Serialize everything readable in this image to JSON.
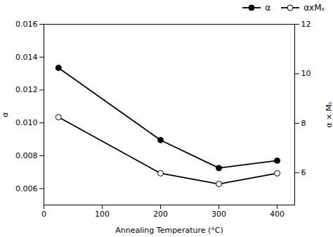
{
  "chart_data": {
    "type": "line",
    "x": [
      25,
      200,
      300,
      400
    ],
    "xlabel": "Annealing Temperature (°C)",
    "ylabel": "α",
    "y2label": "α × Mₛ",
    "series": [
      {
        "name": "α",
        "color": "black",
        "marker": "circle",
        "values": [
          0.01335,
          0.00895,
          0.00725,
          0.0077
        ]
      },
      {
        "name": "αxMₛ",
        "color": "black",
        "marker": "open-circle",
        "axis": "y2",
        "values": [
          8.25,
          5.98,
          5.55,
          5.98
        ]
      }
    ],
    "xlim": [
      0,
      430
    ],
    "xticks": [
      0,
      100,
      200,
      300,
      400
    ],
    "ylim": [
      0.005,
      0.016
    ],
    "yticks": [
      0.006,
      0.008,
      {
        "value": 0.01,
        "label": "0.010"
      },
      0.012,
      0.014,
      0.016
    ],
    "y2lim": [
      4.7,
      12.0
    ],
    "y2ticks": [
      6,
      8,
      10,
      12
    ],
    "legend": "upper right",
    "grid": false
  }
}
